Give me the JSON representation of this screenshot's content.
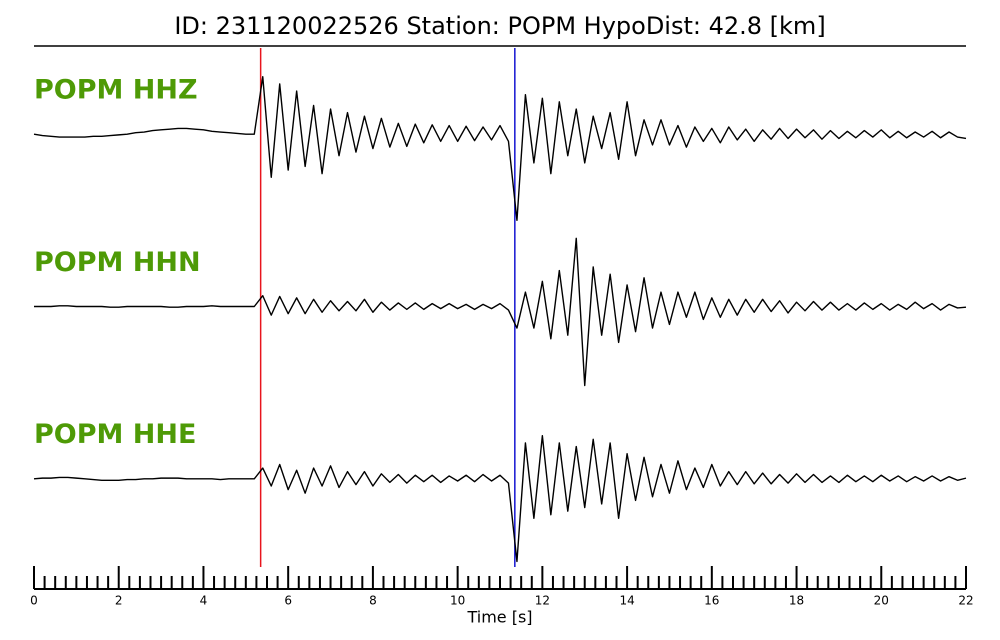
{
  "chart_data": {
    "type": "line",
    "title": "ID: 231120022526   Station: POPM   HypoDist:    42.8 [km]",
    "xlabel": "Time [s]",
    "xlim": [
      0,
      22
    ],
    "xticks": [
      0,
      2,
      4,
      6,
      8,
      10,
      12,
      14,
      16,
      18,
      20,
      22
    ],
    "xminorticks": [
      0.25,
      0.5,
      0.75,
      1,
      1.25,
      1.5,
      1.75,
      2.25,
      2.5,
      2.75,
      3,
      3.25,
      3.5,
      3.75,
      4.25,
      4.5,
      4.75,
      5,
      5.25,
      5.5,
      5.75,
      6.25,
      6.5,
      6.75,
      7,
      7.25,
      7.5,
      7.75,
      8.25,
      8.5,
      8.75,
      9,
      9.25,
      9.5,
      9.75,
      10.25,
      10.5,
      10.75,
      11,
      11.25,
      11.5,
      11.75,
      12.25,
      12.5,
      12.75,
      13,
      13.25,
      13.5,
      13.75,
      14.25,
      14.5,
      14.75,
      15,
      15.25,
      15.5,
      15.75,
      16.25,
      16.5,
      16.75,
      17,
      17.25,
      17.5,
      17.75,
      18.25,
      18.5,
      18.75,
      19,
      19.25,
      19.5,
      19.75,
      20.25,
      20.5,
      20.75,
      21,
      21.25,
      21.5,
      21.75
    ],
    "ylim": [
      -1.2,
      1.2
    ],
    "label_color": "#4e9a06",
    "picks": [
      {
        "x": 5.35,
        "color": "#e8141c"
      },
      {
        "x": 11.35,
        "color": "#1515d0"
      }
    ],
    "x": [
      0,
      0.2,
      0.4,
      0.6,
      0.8,
      1,
      1.2,
      1.4,
      1.6,
      1.8,
      2,
      2.2,
      2.4,
      2.6,
      2.8,
      3,
      3.2,
      3.4,
      3.6,
      3.8,
      4,
      4.2,
      4.4,
      4.6,
      4.8,
      5,
      5.2,
      5.4,
      5.6,
      5.8,
      6,
      6.2,
      6.4,
      6.6,
      6.8,
      7,
      7.2,
      7.4,
      7.6,
      7.8,
      8,
      8.2,
      8.4,
      8.6,
      8.8,
      9,
      9.2,
      9.4,
      9.6,
      9.8,
      10,
      10.2,
      10.4,
      10.6,
      10.8,
      11,
      11.2,
      11.4,
      11.6,
      11.8,
      12,
      12.2,
      12.4,
      12.6,
      12.8,
      13,
      13.2,
      13.4,
      13.6,
      13.8,
      14,
      14.2,
      14.4,
      14.6,
      14.8,
      15,
      15.2,
      15.4,
      15.6,
      15.8,
      16,
      16.2,
      16.4,
      16.6,
      16.8,
      17,
      17.2,
      17.4,
      17.6,
      17.8,
      18,
      18.2,
      18.4,
      18.6,
      18.8,
      19,
      19.2,
      19.4,
      19.6,
      19.8,
      20,
      20.2,
      20.4,
      20.6,
      20.8,
      21,
      21.2,
      21.4,
      21.6,
      21.8,
      22
    ],
    "series": [
      {
        "name": "POPM HHZ",
        "color": "#000000",
        "values": [
          0,
          -0.02,
          -0.03,
          -0.04,
          -0.04,
          -0.04,
          -0.04,
          -0.03,
          -0.03,
          -0.02,
          -0.01,
          0,
          0.02,
          0.03,
          0.05,
          0.06,
          0.07,
          0.08,
          0.08,
          0.07,
          0.06,
          0.04,
          0.03,
          0.02,
          0.01,
          0,
          0,
          0.8,
          -0.6,
          0.7,
          -0.5,
          0.6,
          -0.45,
          0.4,
          -0.55,
          0.35,
          -0.3,
          0.3,
          -0.25,
          0.25,
          -0.2,
          0.22,
          -0.18,
          0.15,
          -0.17,
          0.14,
          -0.12,
          0.13,
          -0.1,
          0.12,
          -0.1,
          0.11,
          -0.09,
          0.1,
          -0.08,
          0.12,
          -0.1,
          -1.2,
          0.55,
          -0.4,
          0.5,
          -0.55,
          0.45,
          -0.3,
          0.35,
          -0.4,
          0.25,
          -0.2,
          0.3,
          -0.35,
          0.45,
          -0.3,
          0.2,
          -0.15,
          0.2,
          -0.15,
          0.12,
          -0.18,
          0.1,
          -0.1,
          0.08,
          -0.12,
          0.1,
          -0.08,
          0.07,
          -0.1,
          0.06,
          -0.07,
          0.08,
          -0.06,
          0.07,
          -0.05,
          0.06,
          -0.07,
          0.05,
          -0.06,
          0.04,
          -0.05,
          0.05,
          -0.04,
          0.06,
          -0.05,
          0.04,
          -0.05,
          0.03,
          -0.04,
          0.04,
          -0.05,
          0.03,
          -0.04,
          -0.06
        ]
      },
      {
        "name": "POPM HHN",
        "color": "#000000",
        "values": [
          0,
          0,
          0,
          0.01,
          0.01,
          0,
          0,
          0,
          0,
          -0.01,
          -0.01,
          0,
          0,
          0,
          0,
          0,
          -0.01,
          -0.01,
          0,
          0,
          0,
          0.01,
          0,
          0,
          0,
          0,
          0,
          0.15,
          -0.12,
          0.14,
          -0.1,
          0.12,
          -0.1,
          0.1,
          -0.08,
          0.08,
          -0.06,
          0.07,
          -0.06,
          0.1,
          -0.08,
          0.06,
          -0.05,
          0.05,
          -0.04,
          0.05,
          -0.04,
          0.04,
          -0.03,
          0.04,
          -0.03,
          0.03,
          -0.04,
          0.03,
          -0.03,
          0.04,
          -0.05,
          -0.3,
          0.2,
          -0.3,
          0.35,
          -0.45,
          0.5,
          -0.4,
          0.95,
          -1.1,
          0.55,
          -0.4,
          0.45,
          -0.5,
          0.3,
          -0.35,
          0.4,
          -0.3,
          0.2,
          -0.25,
          0.2,
          -0.15,
          0.2,
          -0.18,
          0.12,
          -0.15,
          0.1,
          -0.12,
          0.1,
          -0.08,
          0.1,
          -0.07,
          0.08,
          -0.09,
          0.06,
          -0.06,
          0.07,
          -0.05,
          0.06,
          -0.05,
          0.04,
          -0.05,
          0.05,
          -0.04,
          0.04,
          -0.05,
          0.03,
          -0.04,
          0.06,
          -0.03,
          0.04,
          -0.05,
          0.03,
          -0.02,
          -0.01
        ]
      },
      {
        "name": "POPM HHE",
        "color": "#000000",
        "values": [
          0,
          0.01,
          0.01,
          0.02,
          0.02,
          0.01,
          0,
          -0.01,
          -0.02,
          -0.02,
          -0.02,
          -0.01,
          -0.01,
          0,
          0,
          0.01,
          0.01,
          0.01,
          0,
          0,
          0,
          0,
          -0.01,
          0,
          0,
          0,
          0,
          0.15,
          -0.1,
          0.2,
          -0.15,
          0.12,
          -0.2,
          0.15,
          -0.1,
          0.18,
          -0.12,
          0.1,
          -0.08,
          0.1,
          -0.1,
          0.07,
          -0.05,
          0.06,
          -0.06,
          0.05,
          -0.04,
          0.05,
          -0.05,
          0.04,
          -0.03,
          0.05,
          -0.04,
          0.06,
          -0.03,
          0.05,
          -0.06,
          -1.15,
          0.5,
          -0.55,
          0.6,
          -0.5,
          0.5,
          -0.45,
          0.45,
          -0.4,
          0.55,
          -0.35,
          0.5,
          -0.55,
          0.35,
          -0.3,
          0.3,
          -0.25,
          0.2,
          -0.2,
          0.25,
          -0.15,
          0.15,
          -0.12,
          0.2,
          -0.1,
          0.1,
          -0.08,
          0.1,
          -0.07,
          0.08,
          -0.07,
          0.06,
          -0.06,
          0.07,
          -0.05,
          0.06,
          -0.05,
          0.04,
          -0.05,
          0.05,
          -0.04,
          0.04,
          -0.04,
          0.05,
          -0.03,
          0.04,
          -0.04,
          0.03,
          -0.03,
          0.04,
          -0.03,
          0.03,
          -0.02,
          0.01
        ]
      }
    ]
  }
}
